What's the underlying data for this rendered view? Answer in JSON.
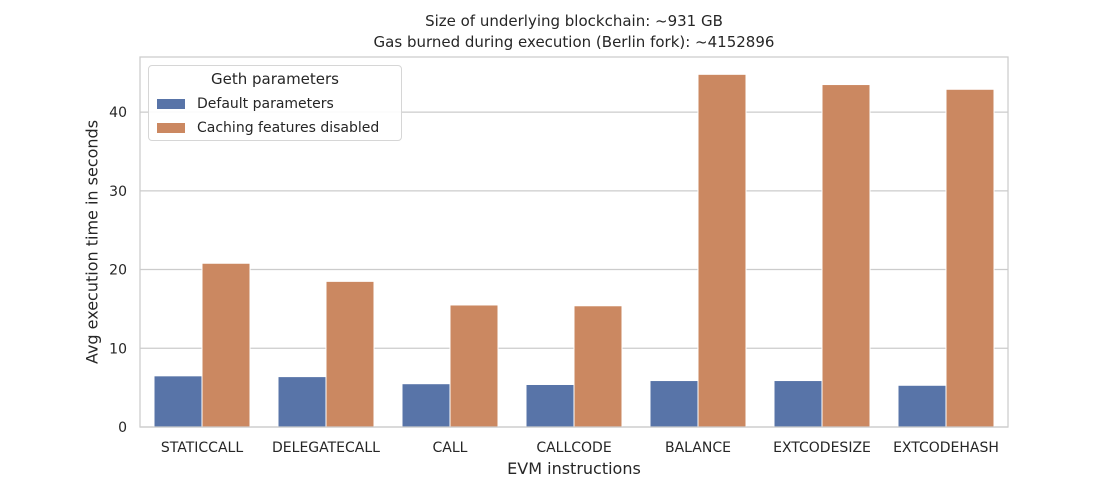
{
  "chart_data": {
    "type": "bar",
    "title": [
      "Size of underlying blockchain: ~931 GB",
      "Gas burned during execution (Berlin fork): ~4152896"
    ],
    "xlabel": "EVM instructions",
    "ylabel": "Avg execution time in seconds",
    "ylim": [
      0,
      47
    ],
    "yticks": [
      0,
      10,
      20,
      30,
      40
    ],
    "grid": true,
    "legend": {
      "title": "Geth parameters",
      "placement": "top-left"
    },
    "categories": [
      "STATICCALL",
      "DELEGATECALL",
      "CALL",
      "CALLCODE",
      "BALANCE",
      "EXTCODESIZE",
      "EXTCODEHASH"
    ],
    "series": [
      {
        "name": "Default parameters",
        "color": "#5874a8",
        "values": [
          6.5,
          6.4,
          5.5,
          5.4,
          5.9,
          5.9,
          5.3
        ]
      },
      {
        "name": "Caching features disabled",
        "color": "#cb8861",
        "values": [
          20.8,
          18.5,
          15.5,
          15.4,
          44.8,
          43.5,
          42.9
        ]
      }
    ]
  }
}
